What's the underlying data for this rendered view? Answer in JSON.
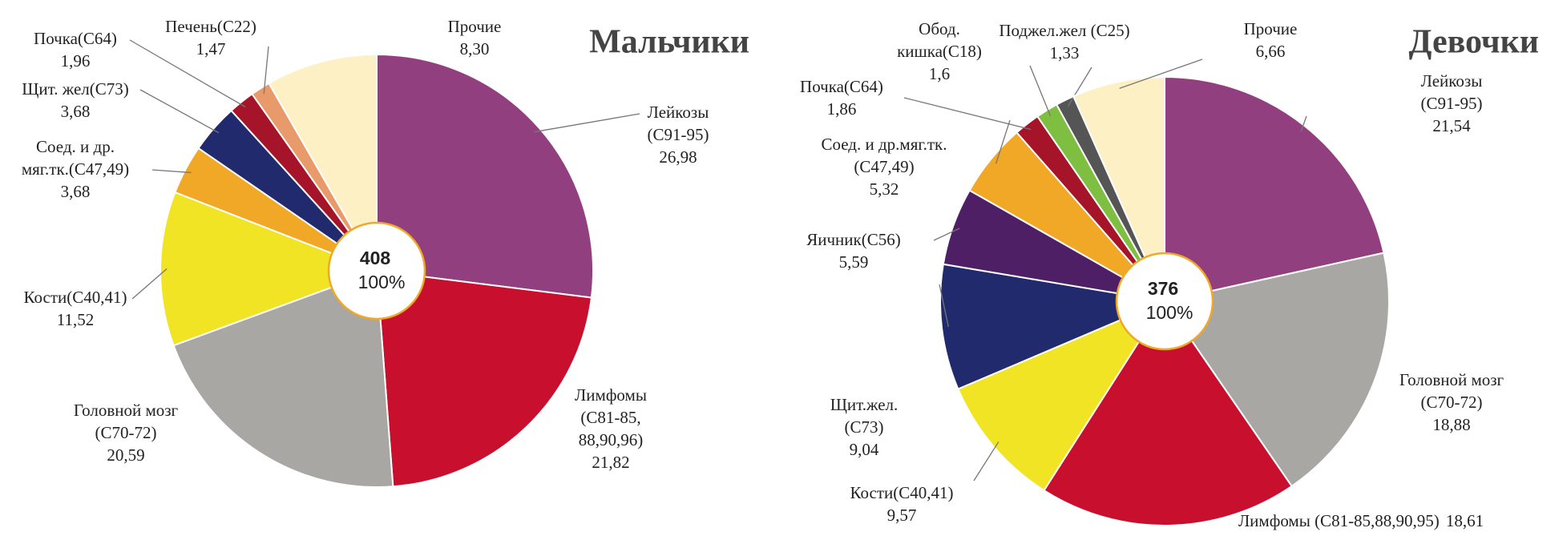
{
  "chart_data": [
    {
      "type": "pie",
      "title": "Мальчики",
      "center_text": [
        "408",
        "100%"
      ],
      "categories": [
        [
          "Лейкозы",
          "(C91-95)"
        ],
        [
          "Лимфомы",
          "(C81-85,",
          "88,90,96)"
        ],
        [
          "Головной мозг",
          "(C70-72)"
        ],
        [
          "Кости(C40,41)"
        ],
        [
          "Соед. и др.",
          "мяг.тк.(C47,49)"
        ],
        [
          "Щит. жел(C73)"
        ],
        [
          "Почка(C64)"
        ],
        [
          "Печень(C22)"
        ],
        [
          "Прочие"
        ]
      ],
      "values": [
        26.98,
        21.82,
        20.59,
        11.52,
        3.68,
        3.68,
        1.96,
        1.47,
        8.3
      ],
      "value_labels": [
        "26,98",
        "21,82",
        "20,59",
        "11,52",
        "3,68",
        "3,68",
        "1,96",
        "1,47",
        "8,30"
      ],
      "colors": [
        "#923f7f",
        "#c8102e",
        "#a9a7a4",
        "#f0e424",
        "#f0a826",
        "#222a6e",
        "#a51429",
        "#e99a6a",
        "#fdf0c4"
      ]
    },
    {
      "type": "pie",
      "title": "Девочки",
      "center_text": [
        "376",
        "100%"
      ],
      "categories": [
        [
          "Лейкозы",
          "(C91-95)"
        ],
        [
          "Головной мозг",
          "(C70-72)"
        ],
        [
          "Лимфомы (C81-85,88,90,95)"
        ],
        [
          "Кости(C40,41)"
        ],
        [
          "Щит.жел.",
          "(C73)"
        ],
        [
          "Яичник(C56)"
        ],
        [
          "Соед. и др.мяг.тк.",
          "(C47,49)"
        ],
        [
          "Почка(C64)"
        ],
        [
          "Обод.",
          "кишка(C18)"
        ],
        [
          "Поджел.жел (C25)"
        ],
        [
          "Прочие"
        ]
      ],
      "values": [
        21.54,
        18.88,
        18.61,
        9.57,
        9.04,
        5.59,
        5.32,
        1.86,
        1.6,
        1.33,
        6.66
      ],
      "value_labels": [
        "21,54",
        "18,88",
        "18,61",
        "9,57",
        "9,04",
        "5,59",
        "5,32",
        "1,86",
        "1,6",
        "1,33",
        "6,66"
      ],
      "colors": [
        "#923f7f",
        "#a9a7a4",
        "#c8102e",
        "#f0e424",
        "#222a6e",
        "#4f1f66",
        "#f0a826",
        "#a51429",
        "#7ebf41",
        "#555555",
        "#fdf0c4"
      ]
    }
  ]
}
